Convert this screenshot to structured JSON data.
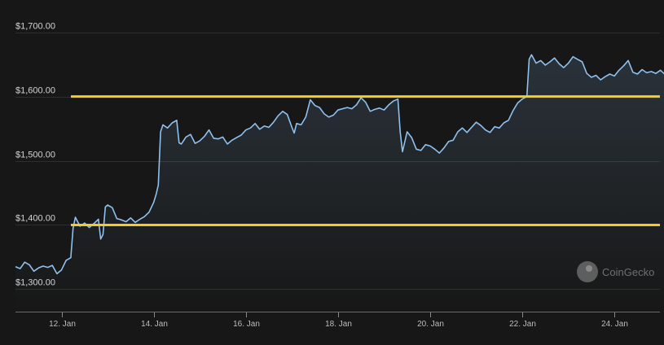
{
  "chart_data": {
    "type": "area",
    "title": "",
    "xlabel": "",
    "ylabel": "",
    "x_range": [
      "2021-01-11",
      "2021-01-25"
    ],
    "ylim": [
      1265,
      1725
    ],
    "y_ticks": [
      {
        "value": 1300,
        "label": "$1,300.00"
      },
      {
        "value": 1400,
        "label": "$1,400.00"
      },
      {
        "value": 1500,
        "label": "$1,500.00"
      },
      {
        "value": 1600,
        "label": "$1,600.00"
      },
      {
        "value": 1700,
        "label": "$1,700.00"
      }
    ],
    "x_ticks": [
      {
        "day": 12,
        "label": "12. Jan"
      },
      {
        "day": 14,
        "label": "14. Jan"
      },
      {
        "day": 16,
        "label": "16. Jan"
      },
      {
        "day": 18,
        "label": "18. Jan"
      },
      {
        "day": 20,
        "label": "20. Jan"
      },
      {
        "day": 22,
        "label": "22. Jan"
      },
      {
        "day": 24,
        "label": "24. Jan"
      }
    ],
    "grid": true,
    "legend": "none",
    "series": [
      {
        "color": "#8fc1ef",
        "points": [
          [
            11.0,
            1335
          ],
          [
            11.1,
            1332
          ],
          [
            11.2,
            1342
          ],
          [
            11.3,
            1338
          ],
          [
            11.4,
            1328
          ],
          [
            11.5,
            1333
          ],
          [
            11.6,
            1336
          ],
          [
            11.7,
            1334
          ],
          [
            11.8,
            1337
          ],
          [
            11.9,
            1324
          ],
          [
            12.0,
            1330
          ],
          [
            12.1,
            1345
          ],
          [
            12.2,
            1349
          ],
          [
            12.25,
            1395
          ],
          [
            12.3,
            1412
          ],
          [
            12.4,
            1398
          ],
          [
            12.5,
            1403
          ],
          [
            12.6,
            1396
          ],
          [
            12.7,
            1402
          ],
          [
            12.8,
            1409
          ],
          [
            12.85,
            1378
          ],
          [
            12.9,
            1385
          ],
          [
            12.95,
            1428
          ],
          [
            13.0,
            1431
          ],
          [
            13.1,
            1427
          ],
          [
            13.2,
            1410
          ],
          [
            13.3,
            1408
          ],
          [
            13.4,
            1405
          ],
          [
            13.5,
            1411
          ],
          [
            13.6,
            1404
          ],
          [
            13.7,
            1409
          ],
          [
            13.8,
            1413
          ],
          [
            13.9,
            1420
          ],
          [
            14.0,
            1435
          ],
          [
            14.05,
            1447
          ],
          [
            14.1,
            1462
          ],
          [
            14.15,
            1545
          ],
          [
            14.2,
            1556
          ],
          [
            14.3,
            1551
          ],
          [
            14.4,
            1559
          ],
          [
            14.5,
            1563
          ],
          [
            14.55,
            1528
          ],
          [
            14.6,
            1526
          ],
          [
            14.7,
            1537
          ],
          [
            14.8,
            1541
          ],
          [
            14.9,
            1527
          ],
          [
            15.0,
            1531
          ],
          [
            15.1,
            1538
          ],
          [
            15.2,
            1548
          ],
          [
            15.3,
            1535
          ],
          [
            15.4,
            1534
          ],
          [
            15.5,
            1537
          ],
          [
            15.6,
            1526
          ],
          [
            15.7,
            1532
          ],
          [
            15.8,
            1536
          ],
          [
            15.9,
            1540
          ],
          [
            16.0,
            1548
          ],
          [
            16.1,
            1551
          ],
          [
            16.2,
            1558
          ],
          [
            16.3,
            1549
          ],
          [
            16.4,
            1554
          ],
          [
            16.5,
            1552
          ],
          [
            16.6,
            1560
          ],
          [
            16.7,
            1570
          ],
          [
            16.8,
            1577
          ],
          [
            16.9,
            1572
          ],
          [
            17.0,
            1552
          ],
          [
            17.05,
            1543
          ],
          [
            17.1,
            1558
          ],
          [
            17.2,
            1556
          ],
          [
            17.3,
            1568
          ],
          [
            17.4,
            1595
          ],
          [
            17.5,
            1586
          ],
          [
            17.6,
            1583
          ],
          [
            17.7,
            1573
          ],
          [
            17.8,
            1568
          ],
          [
            17.9,
            1571
          ],
          [
            18.0,
            1579
          ],
          [
            18.1,
            1581
          ],
          [
            18.2,
            1583
          ],
          [
            18.3,
            1581
          ],
          [
            18.4,
            1587
          ],
          [
            18.5,
            1598
          ],
          [
            18.6,
            1591
          ],
          [
            18.7,
            1577
          ],
          [
            18.8,
            1580
          ],
          [
            18.9,
            1582
          ],
          [
            19.0,
            1579
          ],
          [
            19.1,
            1587
          ],
          [
            19.2,
            1593
          ],
          [
            19.3,
            1596
          ],
          [
            19.35,
            1545
          ],
          [
            19.4,
            1514
          ],
          [
            19.5,
            1545
          ],
          [
            19.6,
            1536
          ],
          [
            19.7,
            1518
          ],
          [
            19.8,
            1516
          ],
          [
            19.9,
            1525
          ],
          [
            20.0,
            1523
          ],
          [
            20.1,
            1518
          ],
          [
            20.2,
            1512
          ],
          [
            20.3,
            1520
          ],
          [
            20.4,
            1530
          ],
          [
            20.5,
            1532
          ],
          [
            20.6,
            1545
          ],
          [
            20.7,
            1551
          ],
          [
            20.8,
            1544
          ],
          [
            20.9,
            1552
          ],
          [
            21.0,
            1560
          ],
          [
            21.1,
            1555
          ],
          [
            21.2,
            1548
          ],
          [
            21.3,
            1544
          ],
          [
            21.4,
            1553
          ],
          [
            21.5,
            1551
          ],
          [
            21.6,
            1559
          ],
          [
            21.7,
            1563
          ],
          [
            21.8,
            1578
          ],
          [
            21.9,
            1590
          ],
          [
            22.0,
            1596
          ],
          [
            22.1,
            1600
          ],
          [
            22.15,
            1658
          ],
          [
            22.2,
            1665
          ],
          [
            22.3,
            1652
          ],
          [
            22.4,
            1656
          ],
          [
            22.5,
            1649
          ],
          [
            22.6,
            1654
          ],
          [
            22.7,
            1660
          ],
          [
            22.8,
            1651
          ],
          [
            22.9,
            1645
          ],
          [
            23.0,
            1652
          ],
          [
            23.1,
            1662
          ],
          [
            23.2,
            1658
          ],
          [
            23.3,
            1654
          ],
          [
            23.4,
            1636
          ],
          [
            23.5,
            1630
          ],
          [
            23.6,
            1633
          ],
          [
            23.7,
            1626
          ],
          [
            23.8,
            1631
          ],
          [
            23.9,
            1635
          ],
          [
            24.0,
            1632
          ],
          [
            24.1,
            1641
          ],
          [
            24.2,
            1648
          ],
          [
            24.3,
            1656
          ],
          [
            24.4,
            1638
          ],
          [
            24.5,
            1635
          ],
          [
            24.6,
            1642
          ],
          [
            24.7,
            1637
          ],
          [
            24.8,
            1639
          ],
          [
            24.9,
            1636
          ],
          [
            25.0,
            1641
          ],
          [
            25.1,
            1634
          ],
          [
            25.2,
            1630
          ],
          [
            25.3,
            1637
          ],
          [
            25.4,
            1641
          ],
          [
            25.5,
            1639
          ],
          [
            25.6,
            1633
          ],
          [
            25.7,
            1645
          ],
          [
            25.8,
            1643
          ],
          [
            25.9,
            1636
          ],
          [
            25.95,
            1640
          ],
          [
            26.0,
            1622
          ]
        ]
      }
    ],
    "horizontal_lines": [
      {
        "value": 1600,
        "color": "#f5cc24"
      },
      {
        "value": 1400,
        "color": "#f5cc24"
      }
    ],
    "watermark": "CoinGecko"
  }
}
